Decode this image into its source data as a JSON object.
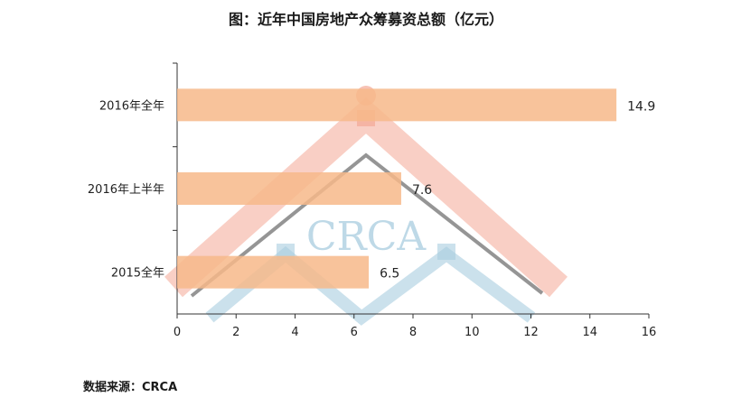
{
  "chart_data": {
    "type": "bar",
    "orientation": "horizontal",
    "title": "图：近年中国房地产众筹募资总额（亿元）",
    "categories": [
      "2016年全年",
      "2016年上半年",
      "2015全年"
    ],
    "values": [
      14.9,
      7.6,
      6.5
    ],
    "data_labels": [
      "14.9",
      "7.6",
      "6.5"
    ],
    "xlim": [
      0,
      16
    ],
    "x_ticks": [
      0,
      2,
      4,
      6,
      8,
      10,
      12,
      14,
      16
    ],
    "xlabel": "",
    "ylabel": "",
    "bar_color": "#f7b98a",
    "grid": false,
    "legend": "none"
  },
  "source": "数据来源：CRCA",
  "watermark": {
    "text": "CRCA",
    "roof_color": "#f4a896",
    "base_color": "#a9cde0"
  }
}
